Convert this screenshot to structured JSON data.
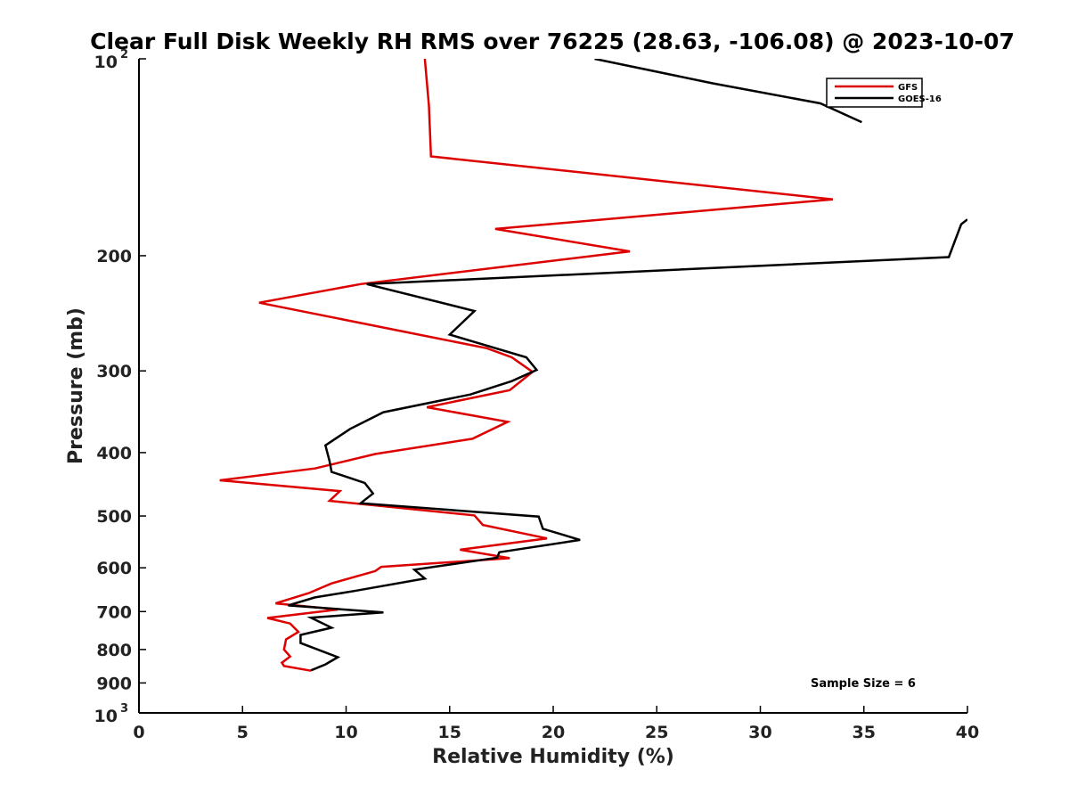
{
  "chart_data": {
    "type": "line",
    "title": "Clear Full Disk Weekly RH RMS over 76225 (28.63, -106.08) @ 2023-10-07",
    "xlabel": "Relative Humidity (%)",
    "ylabel": "Pressure (mb)",
    "xlim": [
      0,
      40
    ],
    "ylim": [
      100,
      1000
    ],
    "y_scale": "log",
    "y_reversed": true,
    "x_ticks": [
      "0",
      "5",
      "10",
      "15",
      "20",
      "25",
      "30",
      "35",
      "40"
    ],
    "y_ticks": [
      {
        "value": 100,
        "base": "10",
        "exp": "2"
      },
      {
        "value": 200,
        "label": "200"
      },
      {
        "value": 300,
        "label": "300"
      },
      {
        "value": 400,
        "label": "400"
      },
      {
        "value": 500,
        "label": "500"
      },
      {
        "value": 600,
        "label": "600"
      },
      {
        "value": 700,
        "label": "700"
      },
      {
        "value": 800,
        "label": "800"
      },
      {
        "value": 900,
        "label": "900"
      },
      {
        "value": 1000,
        "base": "10",
        "exp": "3"
      }
    ],
    "legend_position": "top-right",
    "grid": false,
    "annotation": "Sample Size = 6",
    "series": [
      {
        "name": "GFS",
        "color": "#dd0000",
        "points": [
          [
            13.8,
            100
          ],
          [
            14.0,
            118
          ],
          [
            14.1,
            141
          ],
          [
            33.5,
            164
          ],
          [
            17.2,
            182
          ],
          [
            23.7,
            197
          ],
          [
            10.7,
            221
          ],
          [
            5.8,
            236
          ],
          [
            16.8,
            277
          ],
          [
            18.0,
            286
          ],
          [
            19.0,
            301
          ],
          [
            17.9,
            321
          ],
          [
            13.9,
            341
          ],
          [
            17.8,
            359
          ],
          [
            16.1,
            381
          ],
          [
            11.4,
            402
          ],
          [
            8.5,
            423
          ],
          [
            3.9,
            441
          ],
          [
            9.7,
            458
          ],
          [
            9.2,
            474
          ],
          [
            16.2,
            499
          ],
          [
            16.6,
            516
          ],
          [
            19.7,
            541
          ],
          [
            15.5,
            563
          ],
          [
            17.9,
            580
          ],
          [
            11.7,
            598
          ],
          [
            11.4,
            607
          ],
          [
            9.3,
            634
          ],
          [
            8.2,
            656
          ],
          [
            6.6,
            680
          ],
          [
            9.6,
            695
          ],
          [
            6.2,
            716
          ],
          [
            7.3,
            730
          ],
          [
            7.7,
            752
          ],
          [
            7.1,
            772
          ],
          [
            7.0,
            800
          ],
          [
            7.3,
            820
          ],
          [
            6.9,
            838
          ],
          [
            7.0,
            848
          ],
          [
            8.3,
            862
          ]
        ]
      },
      {
        "name": "GOES-16",
        "color": "#000000",
        "points": [
          [
            40.0,
            176
          ],
          [
            39.7,
            179
          ],
          [
            39.1,
            201
          ],
          [
            11.0,
            221
          ],
          [
            16.2,
            243
          ],
          [
            15.0,
            264
          ],
          [
            18.7,
            286
          ],
          [
            19.2,
            299
          ],
          [
            18.0,
            311
          ],
          [
            16.0,
            326
          ],
          [
            11.8,
            347
          ],
          [
            10.2,
            368
          ],
          [
            9.0,
            390
          ],
          [
            9.2,
            412
          ],
          [
            9.3,
            428
          ],
          [
            10.9,
            445
          ],
          [
            11.3,
            462
          ],
          [
            10.7,
            478
          ],
          [
            19.3,
            501
          ],
          [
            19.5,
            523
          ],
          [
            21.3,
            544
          ],
          [
            17.4,
            568
          ],
          [
            17.3,
            579
          ],
          [
            13.3,
            604
          ],
          [
            13.8,
            623
          ],
          [
            10.4,
            651
          ],
          [
            8.5,
            666
          ],
          [
            7.2,
            685
          ],
          [
            11.8,
            702
          ],
          [
            8.3,
            715
          ],
          [
            9.3,
            741
          ],
          [
            7.8,
            760
          ],
          [
            7.8,
            782
          ],
          [
            9.6,
            822
          ],
          [
            9.0,
            843
          ],
          [
            8.3,
            861
          ]
        ],
        "offscreen_top": [
          [
            22.0,
            100
          ],
          [
            27.7,
            109
          ],
          [
            32.9,
            117
          ],
          [
            34.9,
            125
          ]
        ]
      }
    ]
  }
}
